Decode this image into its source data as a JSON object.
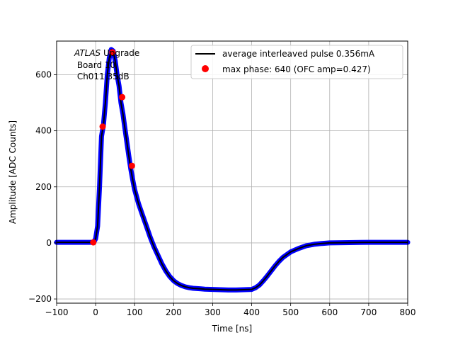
{
  "chart_data": {
    "type": "scatter",
    "xlabel": "Time [ns]",
    "ylabel": "Amplitude [ADC Counts]",
    "xlim": [
      -100,
      800
    ],
    "ylim": [
      -215,
      720
    ],
    "xticks": [
      -100,
      0,
      100,
      200,
      300,
      400,
      500,
      600,
      700,
      800
    ],
    "xtick_labels": [
      "−100",
      "0",
      "100",
      "200",
      "300",
      "400",
      "500",
      "600",
      "700",
      "800"
    ],
    "yticks": [
      -200,
      0,
      200,
      400,
      600
    ],
    "ytick_labels": [
      "−200",
      "0",
      "200",
      "400",
      "600"
    ],
    "grid": true,
    "legend_position": "top-right",
    "annotation": {
      "line1_italic": "ATLAS",
      "line1_rest": " Upgrade",
      "line2": " Board 10",
      "line3": " Ch011 35dB"
    },
    "series": [
      {
        "name": "average interleaved pulse 0.356mA",
        "color": "#000000",
        "marker_color": "#0000ff",
        "x": [
          -100,
          -50,
          -20,
          -5,
          0,
          5,
          10,
          15,
          20,
          25,
          30,
          35,
          40,
          45,
          50,
          55,
          60,
          65,
          70,
          75,
          80,
          85,
          90,
          95,
          100,
          110,
          120,
          130,
          140,
          150,
          160,
          170,
          180,
          190,
          200,
          210,
          220,
          230,
          240,
          250,
          260,
          270,
          280,
          300,
          320,
          340,
          360,
          380,
          400,
          410,
          420,
          430,
          440,
          450,
          460,
          470,
          480,
          490,
          500,
          520,
          540,
          560,
          580,
          600,
          650,
          700,
          750,
          800
        ],
        "y": [
          2,
          2,
          2,
          2,
          15,
          60,
          200,
          380,
          420,
          500,
          600,
          660,
          690,
          685,
          650,
          600,
          560,
          500,
          460,
          410,
          360,
          310,
          265,
          225,
          190,
          140,
          100,
          60,
          20,
          -15,
          -45,
          -75,
          -100,
          -120,
          -135,
          -145,
          -152,
          -157,
          -160,
          -162,
          -163,
          -164,
          -165,
          -166,
          -167,
          -168,
          -168,
          -167,
          -166,
          -160,
          -150,
          -135,
          -118,
          -100,
          -82,
          -66,
          -52,
          -42,
          -32,
          -20,
          -10,
          -5,
          -2,
          0,
          1,
          2,
          2,
          2
        ]
      },
      {
        "name": "max phase: 640 (OFC amp=0.427)",
        "color": "#ff0000",
        "x": [
          -6,
          18,
          43,
          68,
          93
        ],
        "y": [
          2,
          415,
          680,
          520,
          275
        ]
      }
    ]
  }
}
